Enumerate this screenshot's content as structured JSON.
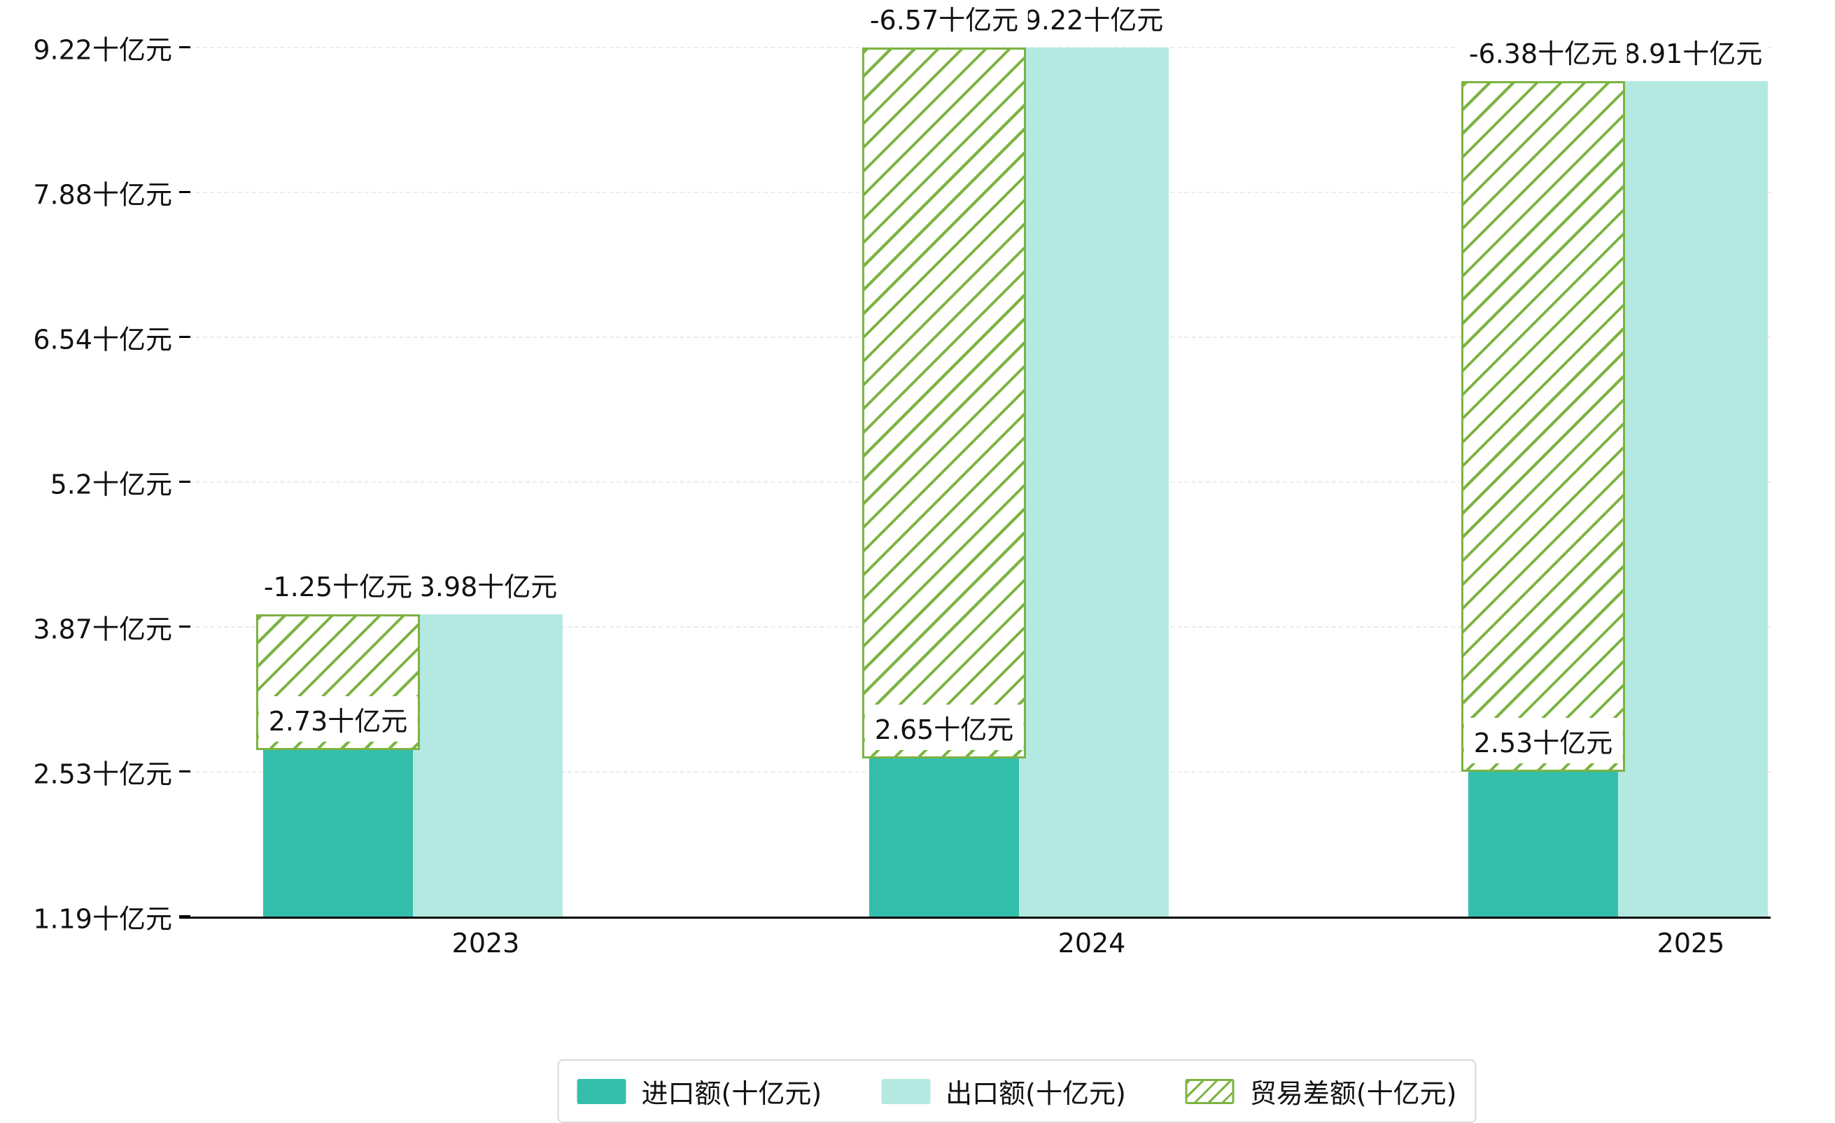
{
  "colors": {
    "import": "#34bfad",
    "export": "#b4e9e1",
    "balance": "#7cb342",
    "grid": "#ebebeb",
    "axis": "#000000",
    "text": "#111111",
    "label_bg": "#ffffff",
    "legend_border": "#d9d9d9",
    "background": "#ffffff"
  },
  "chart_data": {
    "type": "bar",
    "title": "",
    "categories": [
      "2023",
      "2024",
      "2025"
    ],
    "series": [
      {
        "name": "进口额(十亿元)",
        "values": [
          2.73,
          2.65,
          2.53
        ],
        "data_labels": [
          "2.73十亿元",
          "2.65十亿元",
          "2.53十亿元"
        ],
        "style": "solid"
      },
      {
        "name": "出口额(十亿元)",
        "values": [
          3.98,
          9.22,
          8.91
        ],
        "data_labels": [
          "3.98十亿元",
          "9.22十亿元",
          "8.91十亿元"
        ],
        "style": "solid"
      },
      {
        "name": "贸易差额(十亿元)",
        "values": [
          -1.25,
          -6.57,
          -6.38
        ],
        "data_labels": [
          "-1.25十亿元",
          "-6.57十亿元",
          "-6.38十亿元"
        ],
        "style": "hatched",
        "render": "floating bar spanning from import value up to export value"
      }
    ],
    "unit": "十亿元",
    "xlabel": "",
    "ylabel": "",
    "ylim": [
      1.19,
      9.22
    ],
    "ytick_labels": [
      "1.19十亿元",
      "2.53十亿元",
      "3.87十亿元",
      "5.2十亿元",
      "6.54十亿元",
      "7.88十亿元",
      "9.22十亿元"
    ],
    "grid": "horizontal dashed",
    "legend_position": "bottom"
  }
}
